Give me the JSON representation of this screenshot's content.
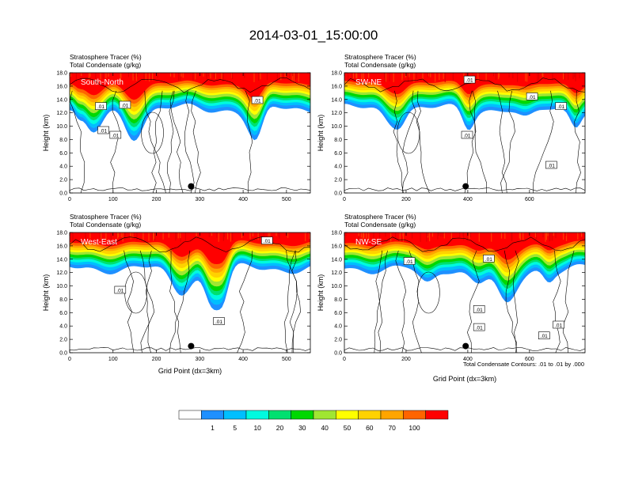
{
  "figure_title": "2014-03-01_15:00:00",
  "contour_note": "Total Condensate Contours: .01 to .01 by .000",
  "colorbar": {
    "levels": [
      "1",
      "5",
      "10",
      "20",
      "30",
      "40",
      "50",
      "60",
      "70",
      "100"
    ],
    "colors": [
      "#ffffff",
      "#1e90ff",
      "#00bfff",
      "#00fadf",
      "#00e070",
      "#00d800",
      "#a0e632",
      "#ffff00",
      "#ffd200",
      "#ffa500",
      "#ff6400",
      "#ff0000"
    ]
  },
  "chart_data": [
    {
      "type": "heatmap",
      "panel_label": "South-North",
      "title_line1": "Stratosphere Tracer   (%)",
      "title_line2": "Total Condensate   (g/kg)",
      "ylabel": "Height (km)",
      "xlabel": "",
      "xlim": [
        0,
        555
      ],
      "ylim": [
        0,
        18
      ],
      "xticks": [
        "0",
        "100",
        "200",
        "300",
        "400",
        "500"
      ],
      "yticks": [
        "0.0",
        "2.0",
        "4.0",
        "6.0",
        "8.0",
        "10.0",
        "12.0",
        "14.0",
        "16.0",
        "18.0"
      ],
      "contour_labels": [
        ".01",
        ".01",
        ".01",
        ".01",
        ".01"
      ],
      "marker": {
        "x": 280,
        "y": 1.0
      }
    },
    {
      "type": "heatmap",
      "panel_label": "SW-NE",
      "title_line1": "Stratosphere Tracer   (%)",
      "title_line2": "Total Condensate   (g/kg)",
      "ylabel": "Height (km)",
      "xlabel": "",
      "xlim": [
        0,
        780
      ],
      "ylim": [
        0,
        18
      ],
      "xticks": [
        "0",
        "200",
        "400",
        "600"
      ],
      "yticks": [
        "0.0",
        "2.0",
        "4.0",
        "6.0",
        "8.0",
        "10.0",
        "12.0",
        "14.0",
        "16.0",
        "18.0"
      ],
      "contour_labels": [
        ".01",
        ".01",
        ".01",
        ".01",
        ".01"
      ],
      "marker": {
        "x": 393,
        "y": 1.0
      }
    },
    {
      "type": "heatmap",
      "panel_label": "West-East",
      "title_line1": "Stratosphere Tracer   (%)",
      "title_line2": "Total Condensate   (g/kg)",
      "ylabel": "Height (km)",
      "xlabel": "Grid Point (dx=3km)",
      "xlim": [
        0,
        555
      ],
      "ylim": [
        0,
        18
      ],
      "xticks": [
        "0",
        "100",
        "200",
        "300",
        "400",
        "500"
      ],
      "yticks": [
        "0.0",
        "2.0",
        "4.0",
        "6.0",
        "8.0",
        "10.0",
        "12.0",
        "14.0",
        "16.0",
        "18.0"
      ],
      "contour_labels": [
        ".01",
        ".01",
        ".01"
      ],
      "marker": {
        "x": 280,
        "y": 1.0
      }
    },
    {
      "type": "heatmap",
      "panel_label": "NW-SE",
      "title_line1": "Stratosphere Tracer   (%)",
      "title_line2": "Total Condensate   (g/kg)",
      "ylabel": "Height (km)",
      "xlabel": "Grid Point (dx=3km)",
      "xlim": [
        0,
        780
      ],
      "ylim": [
        0,
        18
      ],
      "xticks": [
        "0",
        "200",
        "400",
        "600"
      ],
      "yticks": [
        "0.0",
        "2.0",
        "4.0",
        "6.0",
        "8.0",
        "10.0",
        "12.0",
        "14.0",
        "16.0",
        "18.0"
      ],
      "contour_labels": [
        ".01",
        ".01",
        ".01",
        ".01",
        ".01",
        ".01"
      ],
      "marker": {
        "x": 393,
        "y": 1.0
      }
    }
  ]
}
